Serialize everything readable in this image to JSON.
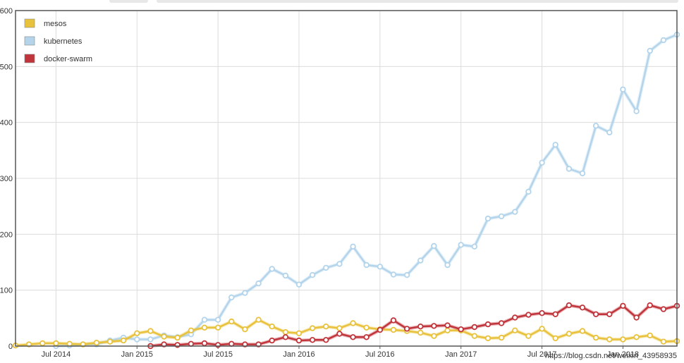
{
  "chart_data": {
    "type": "line",
    "x": [
      "2014-04",
      "2014-05",
      "2014-06",
      "2014-07",
      "2014-08",
      "2014-09",
      "2014-10",
      "2014-11",
      "2014-12",
      "2015-01",
      "2015-02",
      "2015-03",
      "2015-04",
      "2015-05",
      "2015-06",
      "2015-07",
      "2015-08",
      "2015-09",
      "2015-10",
      "2015-11",
      "2015-12",
      "2016-01",
      "2016-02",
      "2016-03",
      "2016-04",
      "2016-05",
      "2016-06",
      "2016-07",
      "2016-08",
      "2016-09",
      "2016-10",
      "2016-11",
      "2016-12",
      "2017-01",
      "2017-02",
      "2017-03",
      "2017-04",
      "2017-05",
      "2017-06",
      "2017-07",
      "2017-08",
      "2017-09",
      "2017-10",
      "2017-11",
      "2017-12",
      "2018-01",
      "2018-02",
      "2018-03",
      "2018-04",
      "2018-05"
    ],
    "series": [
      {
        "name": "mesos",
        "color": "#e8c23c",
        "values": [
          1,
          3,
          5,
          5,
          4,
          3,
          6,
          8,
          10,
          23,
          27,
          17,
          15,
          28,
          33,
          33,
          44,
          30,
          47,
          35,
          25,
          23,
          32,
          35,
          32,
          41,
          33,
          30,
          29,
          27,
          24,
          18,
          28,
          28,
          18,
          14,
          15,
          28,
          18,
          31,
          14,
          22,
          27,
          15,
          12,
          12,
          16,
          19,
          8,
          9
        ]
      },
      {
        "name": "kubernetes",
        "color": "#b3d4ea",
        "values": [
          null,
          null,
          null,
          0,
          1,
          3,
          3,
          10,
          15,
          12,
          12,
          19,
          16,
          21,
          47,
          47,
          87,
          95,
          112,
          138,
          126,
          110,
          127,
          140,
          147,
          178,
          145,
          142,
          128,
          127,
          153,
          179,
          145,
          181,
          178,
          228,
          232,
          240,
          276,
          328,
          360,
          317,
          309,
          394,
          382,
          459,
          420,
          528,
          547,
          557
        ]
      },
      {
        "name": "docker-swarm",
        "color": "#c0353b",
        "values": [
          null,
          null,
          null,
          null,
          null,
          null,
          null,
          null,
          null,
          null,
          0,
          3,
          2,
          4,
          5,
          2,
          4,
          3,
          3,
          10,
          16,
          10,
          11,
          11,
          22,
          16,
          16,
          29,
          46,
          31,
          35,
          36,
          37,
          30,
          34,
          39,
          41,
          51,
          56,
          59,
          57,
          73,
          69,
          57,
          57,
          72,
          51,
          73,
          66,
          72
        ]
      }
    ],
    "x_ticks": [
      "Jul 2014",
      "Jan 2015",
      "Jul 2015",
      "Jan 2016",
      "Jul 2016",
      "Jan 2017",
      "Jul 2017",
      "Jan 2018"
    ],
    "y_ticks": [
      "0",
      "100",
      "200",
      "300",
      "400",
      "500",
      "600"
    ],
    "ylim": [
      0,
      600
    ],
    "grid": true,
    "legend_position": "top-left",
    "watermark": "https://blog.csdn.net/weixin_43958935"
  }
}
